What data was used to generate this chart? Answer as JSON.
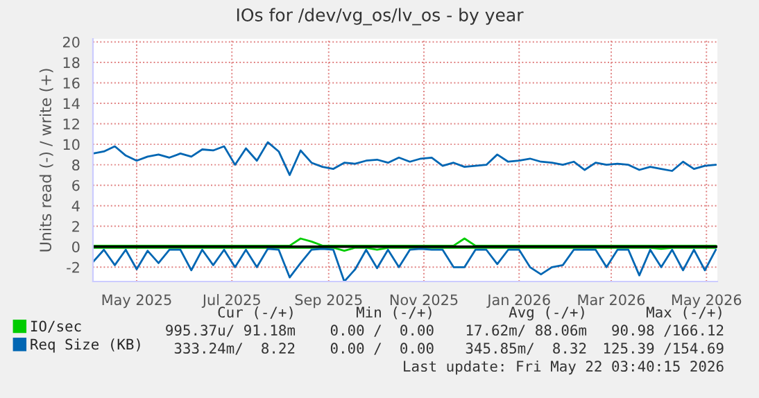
{
  "chart_data": {
    "type": "line",
    "title": "IOs for /dev/vg_os/lv_os - by year",
    "ylabel": "Units read (-) / write (+)",
    "x": [
      "2025-04-17",
      "2025-04-24",
      "2025-05-01",
      "2025-05-08",
      "2025-05-15",
      "2025-05-22",
      "2025-05-29",
      "2025-06-05",
      "2025-06-12",
      "2025-06-19",
      "2025-06-26",
      "2025-07-03",
      "2025-07-10",
      "2025-07-17",
      "2025-07-24",
      "2025-07-31",
      "2025-08-07",
      "2025-08-14",
      "2025-08-21",
      "2025-08-28",
      "2025-09-04",
      "2025-09-11",
      "2025-09-18",
      "2025-09-25",
      "2025-10-02",
      "2025-10-09",
      "2025-10-16",
      "2025-10-23",
      "2025-10-30",
      "2025-11-06",
      "2025-11-13",
      "2025-11-20",
      "2025-11-27",
      "2025-12-04",
      "2025-12-11",
      "2025-12-18",
      "2025-12-25",
      "2026-01-01",
      "2026-01-08",
      "2026-01-15",
      "2026-01-22",
      "2026-01-29",
      "2026-02-05",
      "2026-02-12",
      "2026-02-19",
      "2026-02-26",
      "2026-03-05",
      "2026-03-12",
      "2026-03-19",
      "2026-03-26",
      "2026-04-02",
      "2026-04-09",
      "2026-04-16",
      "2026-04-23",
      "2026-04-30",
      "2026-05-07",
      "2026-05-14",
      "2026-05-21"
    ],
    "series": [
      {
        "name": "IO/sec",
        "color": "#00cc00",
        "values": [
          0.1,
          0.1,
          0.1,
          0.1,
          0.1,
          0.1,
          0.1,
          0.1,
          0.1,
          0.1,
          0.1,
          0.1,
          0.1,
          0.1,
          0.1,
          0.1,
          0.1,
          0.1,
          0.1,
          0.8,
          0.5,
          0.1,
          0.1,
          0.1,
          0.1,
          0.1,
          0.1,
          0.1,
          0.1,
          0.1,
          0.1,
          0.1,
          0.1,
          0.1,
          0.8,
          0.1,
          0.1,
          0.1,
          0.1,
          0.1,
          0.1,
          0.1,
          0.1,
          0.1,
          0.1,
          0.1,
          0.1,
          0.1,
          0.1,
          0.1,
          0.1,
          0.1,
          0.1,
          0.1,
          0.1,
          0.1,
          0.1,
          0.1
        ]
      },
      {
        "color": "#00cc00",
        "values": [
          -0.1,
          -0.1,
          -0.1,
          -0.1,
          -0.1,
          -0.1,
          -0.1,
          -0.1,
          -0.1,
          -0.1,
          -0.1,
          -0.1,
          -0.1,
          -0.1,
          -0.1,
          -0.1,
          -0.1,
          -0.1,
          -0.1,
          -0.1,
          -0.1,
          -0.1,
          -0.1,
          -0.4,
          -0.1,
          -0.1,
          -0.3,
          -0.1,
          -0.1,
          -0.1,
          -0.1,
          -0.1,
          -0.1,
          -0.1,
          -0.1,
          -0.1,
          -0.1,
          -0.1,
          -0.1,
          -0.1,
          -0.1,
          -0.1,
          -0.1,
          -0.1,
          -0.1,
          -0.1,
          -0.1,
          -0.1,
          -0.1,
          -0.1,
          -0.1,
          -0.1,
          -0.2,
          -0.1,
          -0.1,
          -0.1,
          -0.1,
          -0.1
        ]
      },
      {
        "name": "Req Size (KB)",
        "color": "#0066b3",
        "values": [
          9.1,
          9.3,
          9.8,
          8.9,
          8.4,
          8.8,
          9.0,
          8.7,
          9.1,
          8.8,
          9.5,
          9.4,
          9.8,
          8.0,
          9.6,
          8.4,
          10.2,
          9.3,
          7.0,
          9.4,
          8.2,
          7.8,
          7.6,
          8.2,
          8.1,
          8.4,
          8.5,
          8.2,
          8.7,
          8.3,
          8.6,
          8.7,
          7.9,
          8.2,
          7.8,
          7.9,
          8.0,
          9.0,
          8.3,
          8.4,
          8.6,
          8.3,
          8.2,
          8.0,
          8.3,
          7.5,
          8.2,
          8.0,
          8.1,
          8.0,
          7.5,
          7.8,
          7.6,
          7.4,
          8.3,
          7.6,
          7.9,
          8.0
        ]
      },
      {
        "color": "#0066b3",
        "values": [
          -1.5,
          -0.3,
          -1.8,
          -0.3,
          -2.2,
          -0.4,
          -1.6,
          -0.3,
          -0.3,
          -2.3,
          -0.3,
          -1.8,
          -0.3,
          -2.0,
          -0.3,
          -2.0,
          -0.2,
          -0.3,
          -3.0,
          -1.6,
          -0.3,
          -0.2,
          -0.3,
          -3.4,
          -2.2,
          -0.3,
          -2.1,
          -0.3,
          -2.0,
          -0.3,
          -0.2,
          -0.3,
          -0.3,
          -2.0,
          -2.0,
          -0.3,
          -0.3,
          -1.7,
          -0.3,
          -0.3,
          -2.0,
          -2.7,
          -2.0,
          -1.8,
          -0.3,
          -0.3,
          -0.3,
          -2.0,
          -0.3,
          -0.3,
          -2.8,
          -0.3,
          -2.0,
          -0.3,
          -2.3,
          -0.3,
          -2.3,
          -0.3
        ]
      }
    ],
    "xlim": [
      "2025-04-17",
      "2026-05-22"
    ],
    "xticks": [
      {
        "value": "2025-05-15",
        "label": "May 2025"
      },
      {
        "value": "2025-07-15",
        "label": "Jul 2025"
      },
      {
        "value": "2025-09-15",
        "label": "Sep 2025"
      },
      {
        "value": "2025-11-15",
        "label": "Nov 2025"
      },
      {
        "value": "2026-01-15",
        "label": "Jan 2026"
      },
      {
        "value": "2026-03-15",
        "label": "Mar 2026"
      },
      {
        "value": "2026-05-15",
        "label": "May 2026"
      }
    ],
    "ylim": [
      -3.4,
      20.3
    ],
    "yticks": [
      -2,
      0,
      2,
      4,
      6,
      8,
      10,
      12,
      14,
      16,
      18,
      20
    ],
    "ref_lines": [
      {
        "axis": "y",
        "value": 0,
        "color": "#000000"
      }
    ],
    "grid": true,
    "legend": "bottom left",
    "marker": "none",
    "line_style": "solid",
    "annotations": [
      "Cur (-/+)",
      "Min (-/+)",
      "Avg (-/+)",
      "Max (-/+)",
      "995.37u/ 91.18m",
      "0.00 /  0.00",
      "17.62m/ 88.06m",
      "90.98 /166.12",
      "333.24m/  8.22",
      "0.00 /  0.00",
      "345.85m/  8.32",
      "125.39 /154.69",
      "Last update: Fri May 22 03:40:15 2026"
    ]
  }
}
